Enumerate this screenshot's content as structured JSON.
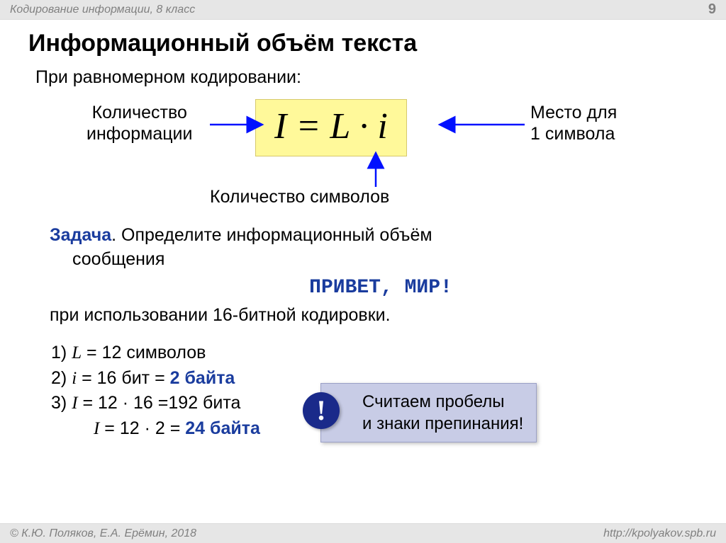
{
  "header": {
    "breadcrumb": "Кодирование информации, 8 класс",
    "page_number": "9"
  },
  "title": "Информационный объём текста",
  "subtitle": "При равномерном кодировании:",
  "formula": {
    "expression": "I = L · i",
    "label_left": "Количество\nинформации",
    "label_right": "Место для\n1 символа",
    "label_bottom": "Количество символов",
    "box_bg": "#fff99a",
    "arrow_color": "#0010ff"
  },
  "task": {
    "label": "Задача",
    "text_1": ". Определите информационный объём",
    "text_2": "сообщения",
    "message": "ПРИВЕТ, МИР!",
    "text_3": "при использовании 16-битной кодировки."
  },
  "solution": {
    "line1_a": "1) ",
    "line1_var": "L",
    "line1_b": " = 12 символов",
    "line2_a": "2) ",
    "line2_var": "i",
    "line2_b": " = 16 бит = ",
    "line2_c": "2 байта",
    "line3_a": "3) ",
    "line3_var": "I",
    "line3_b": " = 12 · 16 =192 бита",
    "line4_var": "I",
    "line4_b": " = 12 · 2 = ",
    "line4_c": "24 байта"
  },
  "note": {
    "line1": "Считаем пробелы",
    "line2": "и знаки препинания!",
    "box_bg": "#c8cce6",
    "badge_bg": "#1a2a8a",
    "badge_char": "!"
  },
  "footer": {
    "copyright": "© К.Ю. Поляков, Е.А. Ерёмин, 2018",
    "url": "http://kpolyakov.spb.ru"
  }
}
